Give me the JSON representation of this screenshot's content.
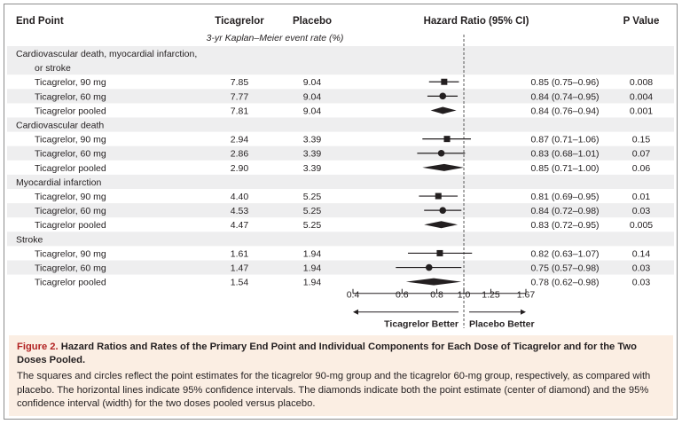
{
  "columns": {
    "end_point": "End Point",
    "ticagrelor": "Ticagrelor",
    "placebo": "Placebo",
    "hazard_ratio": "Hazard Ratio (95% CI)",
    "p_value": "P Value",
    "subheader": "3-yr Kaplan–Meier event rate (%)"
  },
  "rows": [
    {
      "kind": "group",
      "label1": "Cardiovascular death, myocardial infarction,",
      "label2": "or stroke"
    },
    {
      "kind": "data",
      "label": "Ticagrelor, 90 mg",
      "ticagrelor": "7.85",
      "placebo": "9.04",
      "ci_text": "0.85 (0.75–0.96)",
      "p": "0.008",
      "hr": 0.85,
      "lo": 0.75,
      "hi": 0.96,
      "marker": "square"
    },
    {
      "kind": "data",
      "label": "Ticagrelor, 60 mg",
      "ticagrelor": "7.77",
      "placebo": "9.04",
      "ci_text": "0.84 (0.74–0.95)",
      "p": "0.004",
      "hr": 0.84,
      "lo": 0.74,
      "hi": 0.95,
      "marker": "circle"
    },
    {
      "kind": "data",
      "label": "Ticagrelor pooled",
      "ticagrelor": "7.81",
      "placebo": "9.04",
      "ci_text": "0.84 (0.76–0.94)",
      "p": "0.001",
      "hr": 0.84,
      "lo": 0.76,
      "hi": 0.94,
      "marker": "diamond"
    },
    {
      "kind": "group",
      "label1": "Cardiovascular death"
    },
    {
      "kind": "data",
      "label": "Ticagrelor, 90 mg",
      "ticagrelor": "2.94",
      "placebo": "3.39",
      "ci_text": "0.87 (0.71–1.06)",
      "p": "0.15",
      "hr": 0.87,
      "lo": 0.71,
      "hi": 1.06,
      "marker": "square"
    },
    {
      "kind": "data",
      "label": "Ticagrelor, 60 mg",
      "ticagrelor": "2.86",
      "placebo": "3.39",
      "ci_text": "0.83 (0.68–1.01)",
      "p": "0.07",
      "hr": 0.83,
      "lo": 0.68,
      "hi": 1.01,
      "marker": "circle"
    },
    {
      "kind": "data",
      "label": "Ticagrelor pooled",
      "ticagrelor": "2.90",
      "placebo": "3.39",
      "ci_text": "0.85 (0.71–1.00)",
      "p": "0.06",
      "hr": 0.85,
      "lo": 0.71,
      "hi": 1.0,
      "marker": "diamond"
    },
    {
      "kind": "group",
      "label1": "Myocardial infarction"
    },
    {
      "kind": "data",
      "label": "Ticagrelor, 90 mg",
      "ticagrelor": "4.40",
      "placebo": "5.25",
      "ci_text": "0.81 (0.69–0.95)",
      "p": "0.01",
      "hr": 0.81,
      "lo": 0.69,
      "hi": 0.95,
      "marker": "square"
    },
    {
      "kind": "data",
      "label": "Ticagrelor, 60 mg",
      "ticagrelor": "4.53",
      "placebo": "5.25",
      "ci_text": "0.84 (0.72–0.98)",
      "p": "0.03",
      "hr": 0.84,
      "lo": 0.72,
      "hi": 0.98,
      "marker": "circle"
    },
    {
      "kind": "data",
      "label": "Ticagrelor pooled",
      "ticagrelor": "4.47",
      "placebo": "5.25",
      "ci_text": "0.83 (0.72–0.95)",
      "p": "0.005",
      "hr": 0.83,
      "lo": 0.72,
      "hi": 0.95,
      "marker": "diamond"
    },
    {
      "kind": "group",
      "label1": "Stroke"
    },
    {
      "kind": "data",
      "label": "Ticagrelor, 90 mg",
      "ticagrelor": "1.61",
      "placebo": "1.94",
      "ci_text": "0.82 (0.63–1.07)",
      "p": "0.14",
      "hr": 0.82,
      "lo": 0.63,
      "hi": 1.07,
      "marker": "square"
    },
    {
      "kind": "data",
      "label": "Ticagrelor, 60 mg",
      "ticagrelor": "1.47",
      "placebo": "1.94",
      "ci_text": "0.75 (0.57–0.98)",
      "p": "0.03",
      "hr": 0.75,
      "lo": 0.57,
      "hi": 0.98,
      "marker": "circle"
    },
    {
      "kind": "data",
      "label": "Ticagrelor pooled",
      "ticagrelor": "1.54",
      "placebo": "1.94",
      "ci_text": "0.78 (0.62–0.98)",
      "p": "0.03",
      "hr": 0.78,
      "lo": 0.62,
      "hi": 0.98,
      "marker": "diamond"
    }
  ],
  "chart_data": {
    "type": "forest",
    "x_scale": "log",
    "xlim": [
      0.4,
      1.67
    ],
    "ticks": [
      0.4,
      0.6,
      0.8,
      1.0,
      1.25,
      1.67
    ],
    "tick_labels": [
      "0.4",
      "0.6",
      "0.8",
      "1.0",
      "1.25",
      "1.67"
    ],
    "reference_line": 1.0,
    "direction_left": "Ticagrelor Better",
    "direction_right": "Placebo Better"
  },
  "caption": {
    "figure_label": "Figure 2.",
    "title": "Hazard Ratios and Rates of the Primary End Point and Individual Components for Each Dose of Ticagrelor and for the Two Doses Pooled.",
    "body": "The squares and circles reflect the point estimates for the ticagrelor 90-mg group and the ticagrelor 60-mg group, respectively, as compared with placebo. The horizontal lines indicate 95% confidence intervals. The diamonds indicate both the point estimate (center of diamond) and the 95% confidence interval (width) for the two doses pooled versus placebo."
  },
  "colors": {
    "row_shade": "#eeeeef",
    "caption_bg": "#fbeee3",
    "figure_label": "#b22222",
    "ink": "#231f20"
  }
}
